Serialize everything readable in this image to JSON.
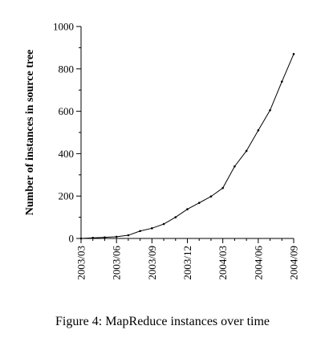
{
  "figure": {
    "caption": "Figure 4: MapReduce instances over time"
  },
  "chart_data": {
    "type": "line",
    "title": "",
    "xlabel": "",
    "ylabel": "Number of instances in source tree",
    "x": [
      "2003/03",
      "2003/04",
      "2003/05",
      "2003/06",
      "2003/07",
      "2003/08",
      "2003/09",
      "2003/10",
      "2003/11",
      "2003/12",
      "2004/01",
      "2004/02",
      "2004/03",
      "2004/04",
      "2004/05",
      "2004/06",
      "2004/07",
      "2004/08",
      "2004/09"
    ],
    "x_tick_labels": [
      "2003/03",
      "2003/06",
      "2003/09",
      "2003/12",
      "2004/03",
      "2004/06",
      "2004/09"
    ],
    "y_ticks": [
      0,
      200,
      400,
      600,
      800,
      1000
    ],
    "ylim": [
      0,
      1000
    ],
    "grid": false,
    "legend": "none",
    "series": [
      {
        "values": [
          0,
          3,
          5,
          8,
          15,
          35,
          48,
          68,
          100,
          138,
          168,
          198,
          238,
          340,
          413,
          510,
          605,
          740,
          870
        ],
        "color": "#000000"
      }
    ]
  }
}
